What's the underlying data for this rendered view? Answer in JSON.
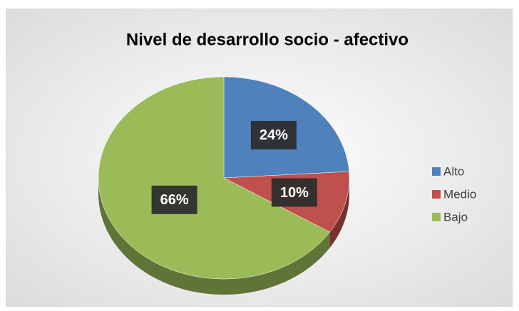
{
  "chart_data": {
    "type": "pie",
    "title": "Nivel de desarrollo socio - afectivo",
    "categories": [
      "Alto",
      "Medio",
      "Bajo"
    ],
    "values": [
      24,
      10,
      66
    ],
    "value_labels": [
      "24%",
      "10%",
      "66%"
    ],
    "colors": [
      "#4f81bd",
      "#c0504d",
      "#9bbb59"
    ],
    "legend": "right"
  }
}
